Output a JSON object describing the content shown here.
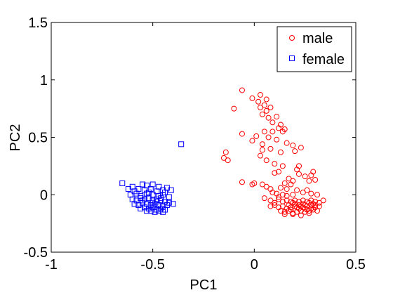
{
  "chart_data": {
    "type": "scatter",
    "title": "",
    "xlabel": "PC1",
    "ylabel": "PC2",
    "xlim": [
      -1,
      0.5
    ],
    "ylim": [
      -0.5,
      1.5
    ],
    "xticks": [
      -1,
      -0.5,
      0,
      0.5
    ],
    "xtick_labels": [
      "-1",
      "-0.5",
      "0",
      "0.5"
    ],
    "yticks": [
      -0.5,
      0,
      0.5,
      1,
      1.5
    ],
    "ytick_labels": [
      "-0.5",
      "0",
      "0.5",
      "1",
      "1.5"
    ],
    "grid": false,
    "legend_position": "top-right",
    "series": [
      {
        "name": "male",
        "marker": "circle",
        "color": "#ff0000",
        "points": [
          [
            -0.06,
            0.91
          ],
          [
            0.03,
            0.87
          ],
          [
            -0.01,
            0.84
          ],
          [
            0.06,
            0.83
          ],
          [
            0.02,
            0.81
          ],
          [
            0.05,
            0.78
          ],
          [
            -0.1,
            0.75
          ],
          [
            0.03,
            0.76
          ],
          [
            0.06,
            0.73
          ],
          [
            0.08,
            0.76
          ],
          [
            0.04,
            0.7
          ],
          [
            0.07,
            0.67
          ],
          [
            0.11,
            0.68
          ],
          [
            0.09,
            0.63
          ],
          [
            0.13,
            0.61
          ],
          [
            0.15,
            0.57
          ],
          [
            0.14,
            0.55
          ],
          [
            0.12,
            0.58
          ],
          [
            0.09,
            0.55
          ],
          [
            0.05,
            0.55
          ],
          [
            -0.06,
            0.53
          ],
          [
            0.01,
            0.51
          ],
          [
            0.07,
            0.5
          ],
          [
            0.11,
            0.48
          ],
          [
            0.16,
            0.45
          ],
          [
            0.19,
            0.43
          ],
          [
            -0.01,
            0.47
          ],
          [
            0.04,
            0.44
          ],
          [
            0.08,
            0.4
          ],
          [
            0.13,
            0.37
          ],
          [
            0.2,
            0.38
          ],
          [
            0.23,
            0.41
          ],
          [
            0.04,
            0.39
          ],
          [
            -0.14,
            0.37
          ],
          [
            -0.15,
            0.32
          ],
          [
            -0.13,
            0.3
          ],
          [
            0.03,
            0.34
          ],
          [
            0.06,
            0.3
          ],
          [
            0.1,
            0.27
          ],
          [
            0.14,
            0.25
          ],
          [
            0.21,
            0.22
          ],
          [
            0.22,
            0.25
          ],
          [
            0.1,
            0.19
          ],
          [
            0.12,
            0.2
          ],
          [
            0.17,
            0.14
          ],
          [
            0.19,
            0.12
          ],
          [
            0.22,
            0.18
          ],
          [
            0.25,
            0.16
          ],
          [
            0.28,
            0.17
          ],
          [
            0.29,
            0.2
          ],
          [
            0.3,
            0.13
          ],
          [
            0.27,
            0.12
          ],
          [
            -0.06,
            0.11
          ],
          [
            -0.01,
            0.09
          ],
          [
            0.0,
            0.1
          ],
          [
            0.04,
            0.09
          ],
          [
            0.06,
            0.07
          ],
          [
            0.08,
            0.05
          ],
          [
            0.13,
            0.06
          ],
          [
            0.16,
            0.05
          ],
          [
            0.18,
            0.09
          ],
          [
            0.15,
            0.1
          ],
          [
            0.09,
            0.02
          ],
          [
            0.11,
            0.01
          ],
          [
            0.14,
            0.0
          ],
          [
            0.12,
            -0.02
          ],
          [
            0.16,
            -0.01
          ],
          [
            0.19,
            0.0
          ],
          [
            0.21,
            0.04
          ],
          [
            0.24,
            0.02
          ],
          [
            0.26,
            0.04
          ],
          [
            0.28,
            0.01
          ],
          [
            0.31,
            0.0
          ],
          [
            0.05,
            -0.03
          ],
          [
            0.08,
            -0.05
          ],
          [
            0.1,
            -0.07
          ],
          [
            0.12,
            -0.04
          ],
          [
            0.14,
            -0.06
          ],
          [
            0.16,
            -0.05
          ],
          [
            0.18,
            -0.06
          ],
          [
            0.2,
            -0.05
          ],
          [
            0.22,
            -0.06
          ],
          [
            0.24,
            -0.05
          ],
          [
            0.26,
            -0.06
          ],
          [
            0.28,
            -0.05
          ],
          [
            0.3,
            -0.06
          ],
          [
            0.32,
            -0.07
          ],
          [
            0.34,
            -0.05
          ],
          [
            0.08,
            -0.1
          ],
          [
            0.1,
            -0.09
          ],
          [
            0.12,
            -0.11
          ],
          [
            0.14,
            -0.1
          ],
          [
            0.16,
            -0.12
          ],
          [
            0.18,
            -0.11
          ],
          [
            0.2,
            -0.1
          ],
          [
            0.22,
            -0.12
          ],
          [
            0.24,
            -0.11
          ],
          [
            0.26,
            -0.1
          ],
          [
            0.28,
            -0.12
          ],
          [
            0.3,
            -0.11
          ],
          [
            0.32,
            -0.1
          ],
          [
            0.13,
            -0.14
          ],
          [
            0.15,
            -0.15
          ],
          [
            0.17,
            -0.14
          ],
          [
            0.19,
            -0.16
          ],
          [
            0.21,
            -0.15
          ],
          [
            0.23,
            -0.14
          ],
          [
            0.25,
            -0.15
          ],
          [
            0.27,
            -0.14
          ],
          [
            0.29,
            -0.13
          ],
          [
            0.31,
            -0.14
          ],
          [
            0.15,
            -0.17
          ],
          [
            0.19,
            -0.17
          ],
          [
            0.23,
            -0.18
          ],
          [
            0.27,
            -0.16
          ],
          [
            0.2,
            -0.08
          ],
          [
            0.24,
            -0.08
          ],
          [
            0.28,
            -0.09
          ],
          [
            0.22,
            -0.09
          ],
          [
            0.25,
            -0.12
          ],
          [
            0.18,
            -0.13
          ],
          [
            0.21,
            -0.11
          ],
          [
            0.26,
            -0.13
          ],
          [
            0.29,
            -0.08
          ],
          [
            0.17,
            -0.09
          ],
          [
            0.23,
            -0.1
          ],
          [
            0.27,
            -0.07
          ],
          [
            0.19,
            -0.07
          ],
          [
            0.25,
            -0.09
          ],
          [
            0.3,
            -0.09
          ]
        ]
      },
      {
        "name": "female",
        "marker": "square",
        "color": "#0000ff",
        "points": [
          [
            -0.65,
            0.1
          ],
          [
            -0.36,
            0.44
          ],
          [
            -0.6,
            0.07
          ],
          [
            -0.55,
            0.09
          ],
          [
            -0.53,
            0.08
          ],
          [
            -0.5,
            0.09
          ],
          [
            -0.47,
            0.07
          ],
          [
            -0.43,
            0.06
          ],
          [
            -0.41,
            0.04
          ],
          [
            -0.62,
            0.05
          ],
          [
            -0.59,
            0.03
          ],
          [
            -0.57,
            0.05
          ],
          [
            -0.54,
            0.04
          ],
          [
            -0.51,
            0.05
          ],
          [
            -0.48,
            0.03
          ],
          [
            -0.45,
            0.04
          ],
          [
            -0.44,
            0.02
          ],
          [
            -0.61,
            0.0
          ],
          [
            -0.58,
            0.01
          ],
          [
            -0.56,
            -0.01
          ],
          [
            -0.53,
            0.01
          ],
          [
            -0.5,
            0.0
          ],
          [
            -0.47,
            -0.01
          ],
          [
            -0.45,
            0.0
          ],
          [
            -0.42,
            -0.02
          ],
          [
            -0.6,
            -0.04
          ],
          [
            -0.58,
            -0.05
          ],
          [
            -0.56,
            -0.03
          ],
          [
            -0.54,
            -0.04
          ],
          [
            -0.52,
            -0.03
          ],
          [
            -0.5,
            -0.05
          ],
          [
            -0.48,
            -0.04
          ],
          [
            -0.46,
            -0.05
          ],
          [
            -0.44,
            -0.06
          ],
          [
            -0.42,
            -0.07
          ],
          [
            -0.4,
            -0.08
          ],
          [
            -0.59,
            -0.08
          ],
          [
            -0.57,
            -0.09
          ],
          [
            -0.55,
            -0.07
          ],
          [
            -0.53,
            -0.08
          ],
          [
            -0.51,
            -0.09
          ],
          [
            -0.49,
            -0.08
          ],
          [
            -0.47,
            -0.09
          ],
          [
            -0.45,
            -0.1
          ],
          [
            -0.43,
            -0.09
          ],
          [
            -0.56,
            -0.12
          ],
          [
            -0.54,
            -0.11
          ],
          [
            -0.52,
            -0.12
          ],
          [
            -0.5,
            -0.11
          ],
          [
            -0.48,
            -0.13
          ],
          [
            -0.46,
            -0.12
          ],
          [
            -0.44,
            -0.13
          ],
          [
            -0.53,
            -0.14
          ],
          [
            -0.51,
            -0.14
          ],
          [
            -0.49,
            -0.15
          ],
          [
            -0.47,
            -0.14
          ],
          [
            -0.45,
            -0.15
          ],
          [
            -0.55,
            -0.05
          ],
          [
            -0.5,
            -0.07
          ],
          [
            -0.46,
            -0.03
          ],
          [
            -0.52,
            0.02
          ],
          [
            -0.48,
            -0.06
          ]
        ]
      }
    ]
  }
}
